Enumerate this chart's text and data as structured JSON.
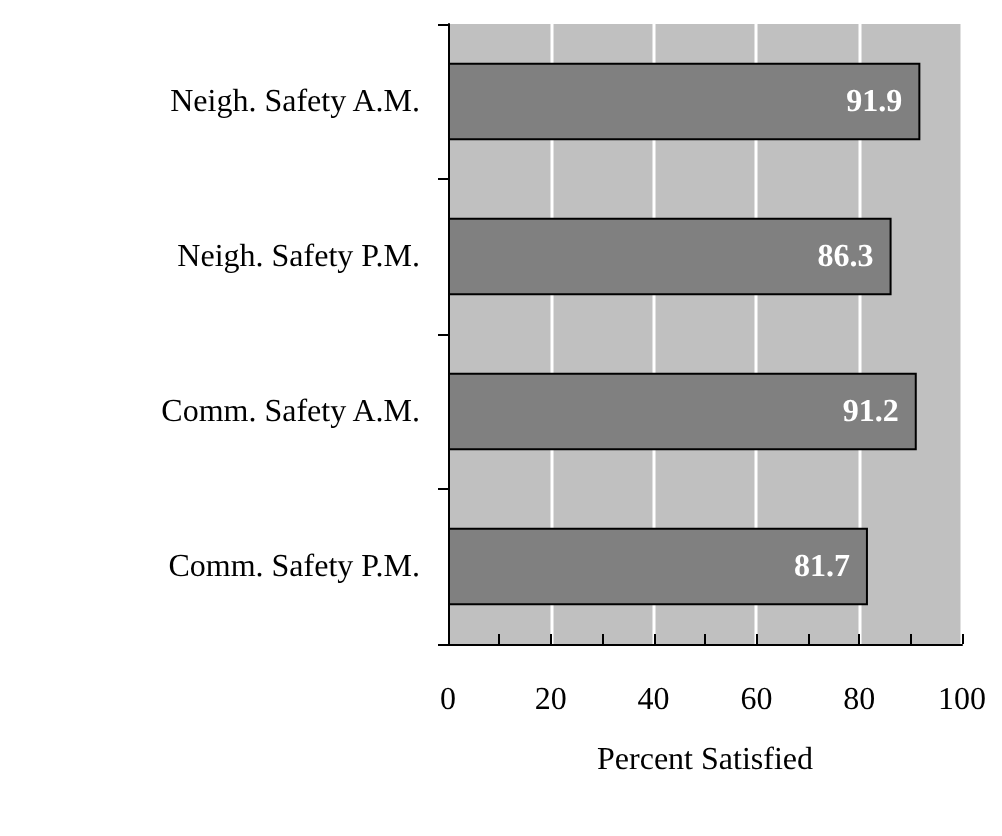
{
  "chart_data": {
    "type": "bar",
    "orientation": "horizontal",
    "xlabel": "Percent Satisfied",
    "categories": [
      "Neigh. Safety A.M.",
      "Neigh. Safety P.M.",
      "Comm. Safety A.M.",
      "Comm. Safety P.M."
    ],
    "values": [
      91.9,
      86.3,
      91.2,
      81.7
    ],
    "color": "#808080",
    "data_labels": true,
    "xlim": [
      0,
      100
    ],
    "xticks": [
      0,
      20,
      40,
      60,
      80,
      100
    ],
    "grid": "x"
  }
}
